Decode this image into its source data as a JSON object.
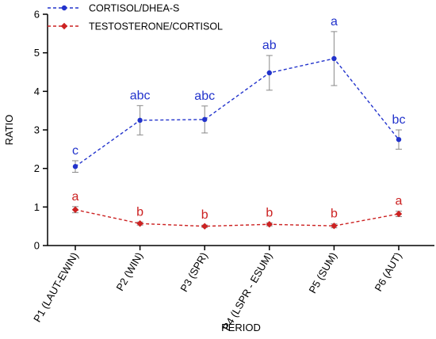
{
  "chart_data": {
    "type": "line",
    "xlabel": "PERIOD",
    "ylabel": "RATIO",
    "ylim": [
      0,
      6
    ],
    "yticks": [
      0,
      1,
      2,
      3,
      4,
      5,
      6
    ],
    "grid": false,
    "legend_position": "top-left",
    "categories": [
      "P1 (LAUT-EWIN)",
      "P2 (WIN)",
      "P3 (SPR)",
      "P4 (LSPR - ESUM)",
      "P5 (SUM)",
      "P6 (AUT)"
    ],
    "series": [
      {
        "name": "CORTISOL/DHEA-S",
        "color": "#2233cc",
        "marker": "circle",
        "line_style": "dashed",
        "values": [
          2.05,
          3.25,
          3.27,
          4.48,
          4.85,
          2.75
        ],
        "errors": [
          0.15,
          0.38,
          0.35,
          0.45,
          0.7,
          0.25
        ],
        "significance_labels": [
          "c",
          "abc",
          "abc",
          "ab",
          "a",
          "bc"
        ]
      },
      {
        "name": "TESTOSTERONE/CORTISOL",
        "color": "#cc2222",
        "marker": "diamond",
        "line_style": "dashed",
        "values": [
          0.93,
          0.57,
          0.5,
          0.55,
          0.51,
          0.82
        ],
        "errors": [
          0.08,
          0.04,
          0.03,
          0.04,
          0.05,
          0.07
        ],
        "significance_labels": [
          "a",
          "b",
          "b",
          "b",
          "b",
          "a"
        ]
      }
    ]
  }
}
